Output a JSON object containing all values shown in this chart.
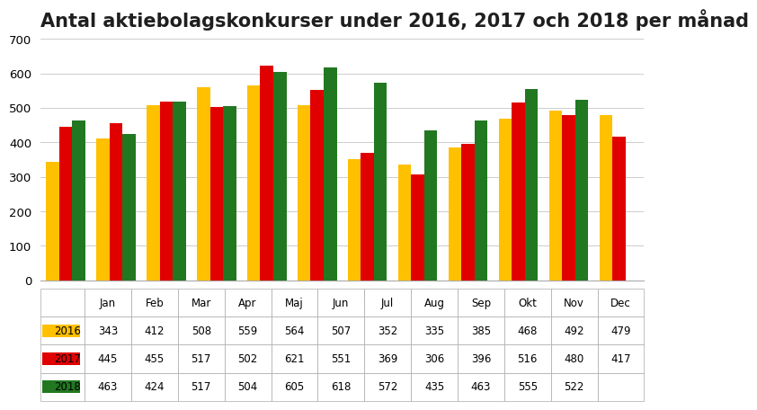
{
  "title": "Antal aktiebolagskonkurser under 2016, 2017 och 2018 per månad",
  "months": [
    "Jan",
    "Feb",
    "Mar",
    "Apr",
    "Maj",
    "Jun",
    "Jul",
    "Aug",
    "Sep",
    "Okt",
    "Nov",
    "Dec"
  ],
  "series": {
    "2016": [
      343,
      412,
      508,
      559,
      564,
      507,
      352,
      335,
      385,
      468,
      492,
      479
    ],
    "2017": [
      445,
      455,
      517,
      502,
      621,
      551,
      369,
      306,
      396,
      516,
      480,
      417
    ],
    "2018": [
      463,
      424,
      517,
      504,
      605,
      618,
      572,
      435,
      463,
      555,
      522,
      null
    ]
  },
  "colors": {
    "2016": "#FFC000",
    "2017": "#E00000",
    "2018": "#217821"
  },
  "ylim": [
    0,
    700
  ],
  "yticks": [
    0,
    100,
    200,
    300,
    400,
    500,
    600,
    700
  ],
  "background_color": "#FFFFFF",
  "title_fontsize": 15,
  "bar_width": 0.26
}
